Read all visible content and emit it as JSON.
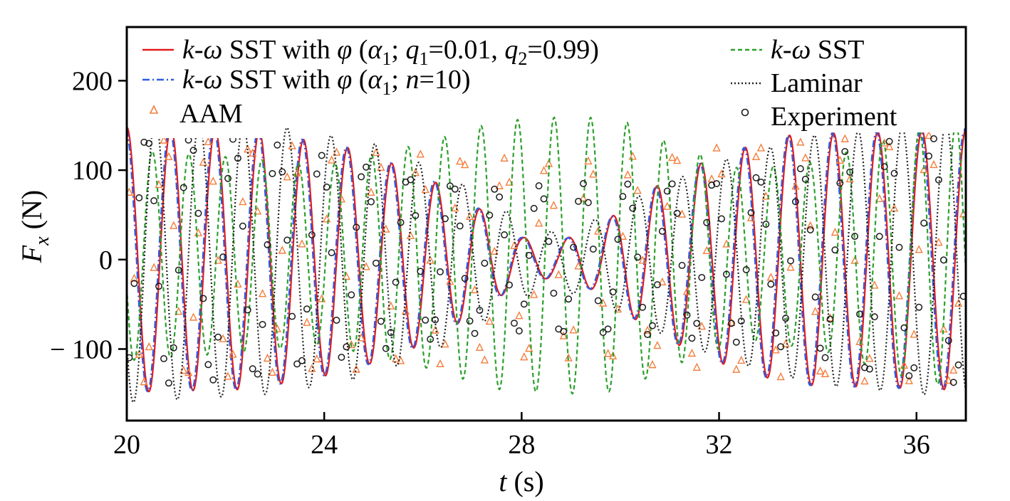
{
  "chart_data": {
    "type": "line",
    "title": "",
    "xlabel": "t (s)",
    "ylabel": "F_x (N)",
    "xlim": [
      20,
      37
    ],
    "ylim": [
      -180,
      260
    ],
    "xticks": [
      20,
      24,
      28,
      32,
      36
    ],
    "yticks": [
      -100,
      0,
      100,
      200
    ],
    "legend": {
      "placement": "top",
      "columns": 2
    },
    "grid": false,
    "series": [
      {
        "name": "k-ω SST with φ (α1; q1=0.01, q2=0.99)",
        "color": "#e31a1c",
        "style": "solid",
        "marker": "none",
        "params": {
          "period": 0.895,
          "phase": 0.0,
          "model": "envelope_a"
        }
      },
      {
        "name": "k-ω SST with φ (α1; n=10)",
        "color": "#2b5ce6",
        "style": "dashdot",
        "marker": "none",
        "params": {
          "period": 0.895,
          "phase": 0.03,
          "model": "envelope_a"
        }
      },
      {
        "name": "AAM",
        "color": "#f47e3c",
        "style": "none",
        "marker": "triangle",
        "sample_step": 0.1,
        "params": {
          "period": 0.86,
          "phase": 0.1,
          "model": "steady_b"
        }
      },
      {
        "name": "k-ω SST",
        "color": "#2ca02c",
        "style": "dashed",
        "marker": "none",
        "params": {
          "period": 0.74,
          "phase": 0.3,
          "model": "envelope_c"
        }
      },
      {
        "name": "Laminar",
        "color": "#222222",
        "style": "dotted",
        "marker": "none",
        "params": {
          "period": 0.89,
          "phase": 0.35,
          "model": "envelope_d"
        }
      },
      {
        "name": "Experiment",
        "color": "#1a1a1a",
        "style": "none",
        "marker": "circle",
        "sample_step": 0.1,
        "params": {
          "period": 0.885,
          "phase": 0.55,
          "model": "envelope_e"
        }
      }
    ]
  }
}
